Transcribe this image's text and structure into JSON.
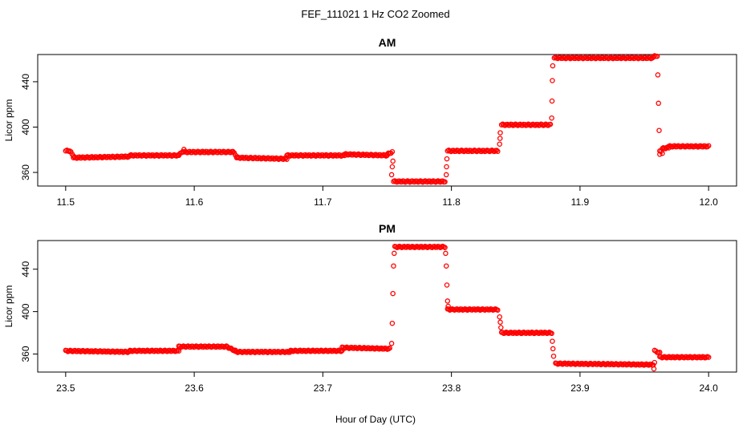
{
  "figure": {
    "title": "FEF_111021  1 Hz CO2 Zoomed",
    "xlabel": "Hour of Day (UTC)"
  },
  "colors": {
    "points": "#ff0000",
    "axes": "#000000",
    "background": "#ffffff"
  },
  "chart_data": [
    {
      "type": "scatter",
      "title": "AM",
      "ylabel": "Licor ppm",
      "xlabel": "Hour of Day (UTC)",
      "xlim": [
        11.5,
        12.0
      ],
      "ylim": [
        348,
        464
      ],
      "xticks": [
        11.5,
        11.6,
        11.7,
        11.8,
        11.9,
        12.0
      ],
      "xtick_labels": [
        "11.5",
        "11.6",
        "11.7",
        "11.8",
        "11.9",
        "12.0"
      ],
      "yticks": [
        360,
        400,
        440
      ],
      "ytick_labels": [
        "360",
        "400",
        "440"
      ],
      "grid": false,
      "legend": "none",
      "segments": [
        {
          "x": [
            11.5,
            11.503
          ],
          "y": [
            379,
            379
          ]
        },
        {
          "x": [
            11.503,
            11.506
          ],
          "y": [
            379,
            375
          ]
        },
        {
          "x": [
            11.506,
            11.55
          ],
          "y": [
            373,
            374
          ]
        },
        {
          "x": [
            11.55,
            11.588
          ],
          "y": [
            375,
            375
          ]
        },
        {
          "x": [
            11.588,
            11.592
          ],
          "y": [
            375,
            380
          ]
        },
        {
          "x": [
            11.592,
            11.63
          ],
          "y": [
            378,
            378
          ]
        },
        {
          "x": [
            11.63,
            11.633
          ],
          "y": [
            378,
            374
          ]
        },
        {
          "x": [
            11.633,
            11.672
          ],
          "y": [
            373,
            372
          ]
        },
        {
          "x": [
            11.672,
            11.717
          ],
          "y": [
            375,
            375
          ]
        },
        {
          "x": [
            11.717,
            11.75
          ],
          "y": [
            376,
            375
          ]
        },
        {
          "x": [
            11.75,
            11.754
          ],
          "y": [
            376,
            378
          ]
        },
        {
          "x": [
            11.755,
            11.795
          ],
          "y": [
            352,
            352
          ]
        },
        {
          "x": [
            11.797,
            11.836
          ],
          "y": [
            379,
            379
          ]
        },
        {
          "x": [
            11.839,
            11.877
          ],
          "y": [
            402,
            402
          ]
        },
        {
          "x": [
            11.88,
            11.957
          ],
          "y": [
            461,
            461
          ]
        },
        {
          "x": [
            11.957,
            11.96
          ],
          "y": [
            462,
            463
          ]
        },
        {
          "x": [
            11.962,
            11.964
          ],
          "y": [
            379,
            377
          ]
        },
        {
          "x": [
            11.964,
            11.969
          ],
          "y": [
            381,
            382
          ]
        },
        {
          "x": [
            11.969,
            12.0
          ],
          "y": [
            383,
            383
          ]
        }
      ],
      "points": [
        {
          "x": 11.7535,
          "y": 358
        },
        {
          "x": 11.754,
          "y": 365
        },
        {
          "x": 11.7545,
          "y": 370
        },
        {
          "x": 11.796,
          "y": 358
        },
        {
          "x": 11.7962,
          "y": 365
        },
        {
          "x": 11.7965,
          "y": 372
        },
        {
          "x": 11.8375,
          "y": 385
        },
        {
          "x": 11.8378,
          "y": 390
        },
        {
          "x": 11.838,
          "y": 395
        },
        {
          "x": 11.878,
          "y": 408
        },
        {
          "x": 11.8782,
          "y": 423
        },
        {
          "x": 11.8785,
          "y": 441
        },
        {
          "x": 11.8788,
          "y": 454
        },
        {
          "x": 11.9605,
          "y": 446
        },
        {
          "x": 11.961,
          "y": 421
        },
        {
          "x": 11.9615,
          "y": 397
        },
        {
          "x": 11.962,
          "y": 376
        }
      ]
    },
    {
      "type": "scatter",
      "title": "PM",
      "ylabel": "Licor ppm",
      "xlabel": "Hour of Day (UTC)",
      "xlim": [
        23.5,
        24.0
      ],
      "ylim": [
        343,
        467
      ],
      "xticks": [
        23.5,
        23.6,
        23.7,
        23.8,
        23.9,
        24.0
      ],
      "xtick_labels": [
        "23.5",
        "23.6",
        "23.7",
        "23.8",
        "23.9",
        "24.0"
      ],
      "yticks": [
        360,
        400,
        440
      ],
      "ytick_labels": [
        "360",
        "400",
        "440"
      ],
      "grid": false,
      "legend": "none",
      "segments": [
        {
          "x": [
            23.5,
            23.55
          ],
          "y": [
            363,
            362
          ]
        },
        {
          "x": [
            23.55,
            23.588
          ],
          "y": [
            363,
            363
          ]
        },
        {
          "x": [
            23.588,
            23.625
          ],
          "y": [
            367,
            367
          ]
        },
        {
          "x": [
            23.625,
            23.632
          ],
          "y": [
            367,
            363
          ]
        },
        {
          "x": [
            23.632,
            23.675
          ],
          "y": [
            362,
            362
          ]
        },
        {
          "x": [
            23.675,
            23.715
          ],
          "y": [
            363,
            363
          ]
        },
        {
          "x": [
            23.715,
            23.752
          ],
          "y": [
            366,
            365
          ]
        },
        {
          "x": [
            23.756,
            23.795
          ],
          "y": [
            461,
            461
          ]
        },
        {
          "x": [
            23.797,
            23.836
          ],
          "y": [
            402,
            402
          ]
        },
        {
          "x": [
            23.839,
            23.878
          ],
          "y": [
            380,
            380
          ]
        },
        {
          "x": [
            23.881,
            23.957
          ],
          "y": [
            351,
            350
          ]
        },
        {
          "x": [
            23.958,
            23.962
          ],
          "y": [
            363,
            361
          ]
        },
        {
          "x": [
            23.962,
            24.0
          ],
          "y": [
            357,
            357
          ]
        }
      ],
      "points": [
        {
          "x": 23.7535,
          "y": 370
        },
        {
          "x": 23.754,
          "y": 389
        },
        {
          "x": 23.7545,
          "y": 417
        },
        {
          "x": 23.755,
          "y": 443
        },
        {
          "x": 23.7555,
          "y": 455
        },
        {
          "x": 23.7955,
          "y": 455
        },
        {
          "x": 23.796,
          "y": 443
        },
        {
          "x": 23.7965,
          "y": 425
        },
        {
          "x": 23.797,
          "y": 410
        },
        {
          "x": 23.7975,
          "y": 405
        },
        {
          "x": 23.8375,
          "y": 395
        },
        {
          "x": 23.838,
          "y": 390
        },
        {
          "x": 23.8385,
          "y": 385
        },
        {
          "x": 23.8785,
          "y": 372
        },
        {
          "x": 23.879,
          "y": 365
        },
        {
          "x": 23.8795,
          "y": 358
        },
        {
          "x": 23.9575,
          "y": 346
        },
        {
          "x": 23.958,
          "y": 352
        }
      ]
    }
  ]
}
